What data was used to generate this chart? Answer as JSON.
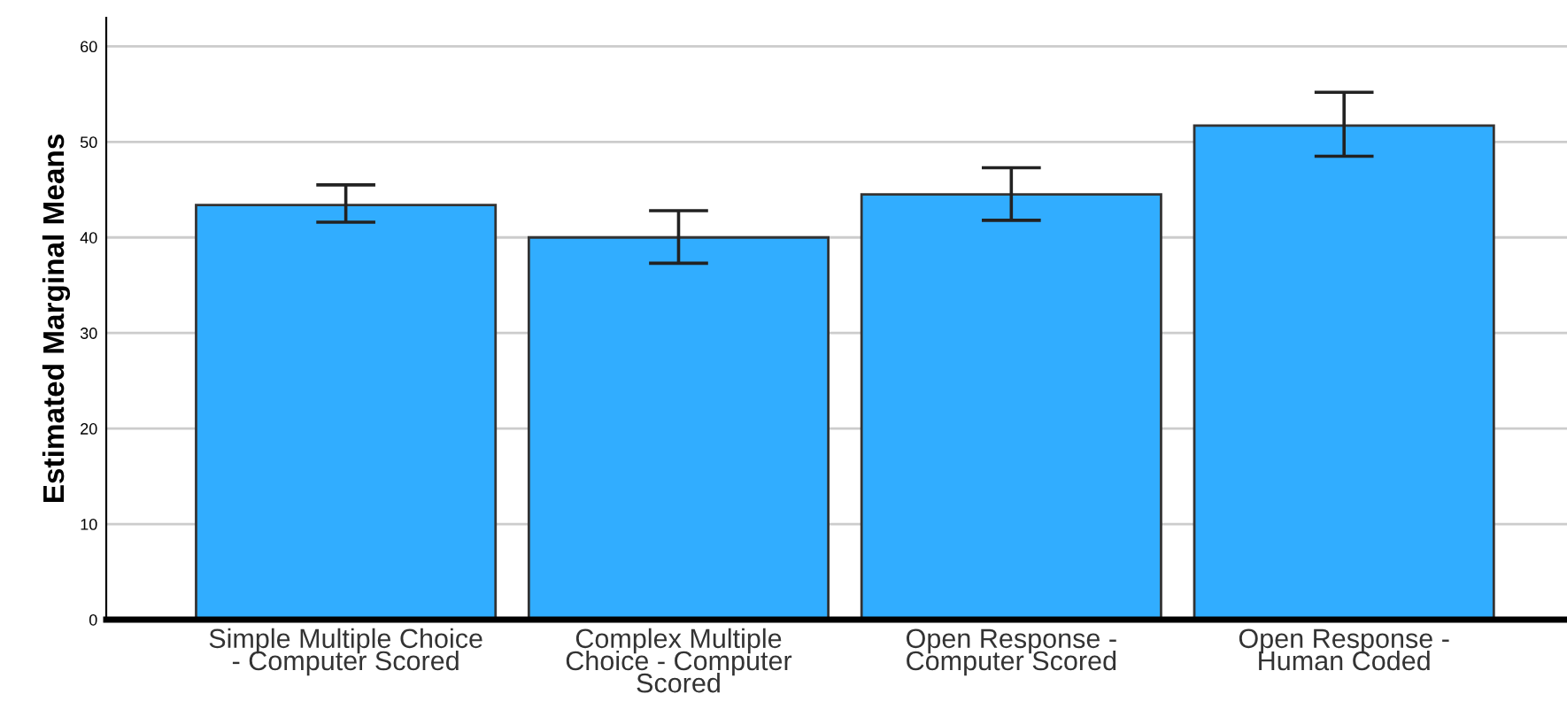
{
  "chart_data": {
    "type": "bar",
    "ylabel": "Estimated Marginal Means",
    "categories": [
      "Simple Multiple Choice\n- Computer Scored",
      "Complex Multiple\nChoice - Computer\nScored",
      "Open Response -\nComputer Scored",
      "Open Response -\nHuman Coded"
    ],
    "values": [
      43.4,
      40.0,
      44.5,
      51.7
    ],
    "errors": [
      [
        41.6,
        45.5
      ],
      [
        37.3,
        42.8
      ],
      [
        41.8,
        47.3
      ],
      [
        48.5,
        55.2
      ]
    ],
    "color": "#31adff",
    "ylim": [
      0,
      63
    ],
    "yticks": [
      0,
      10,
      20,
      30,
      40,
      50,
      60
    ],
    "grid": "y"
  }
}
